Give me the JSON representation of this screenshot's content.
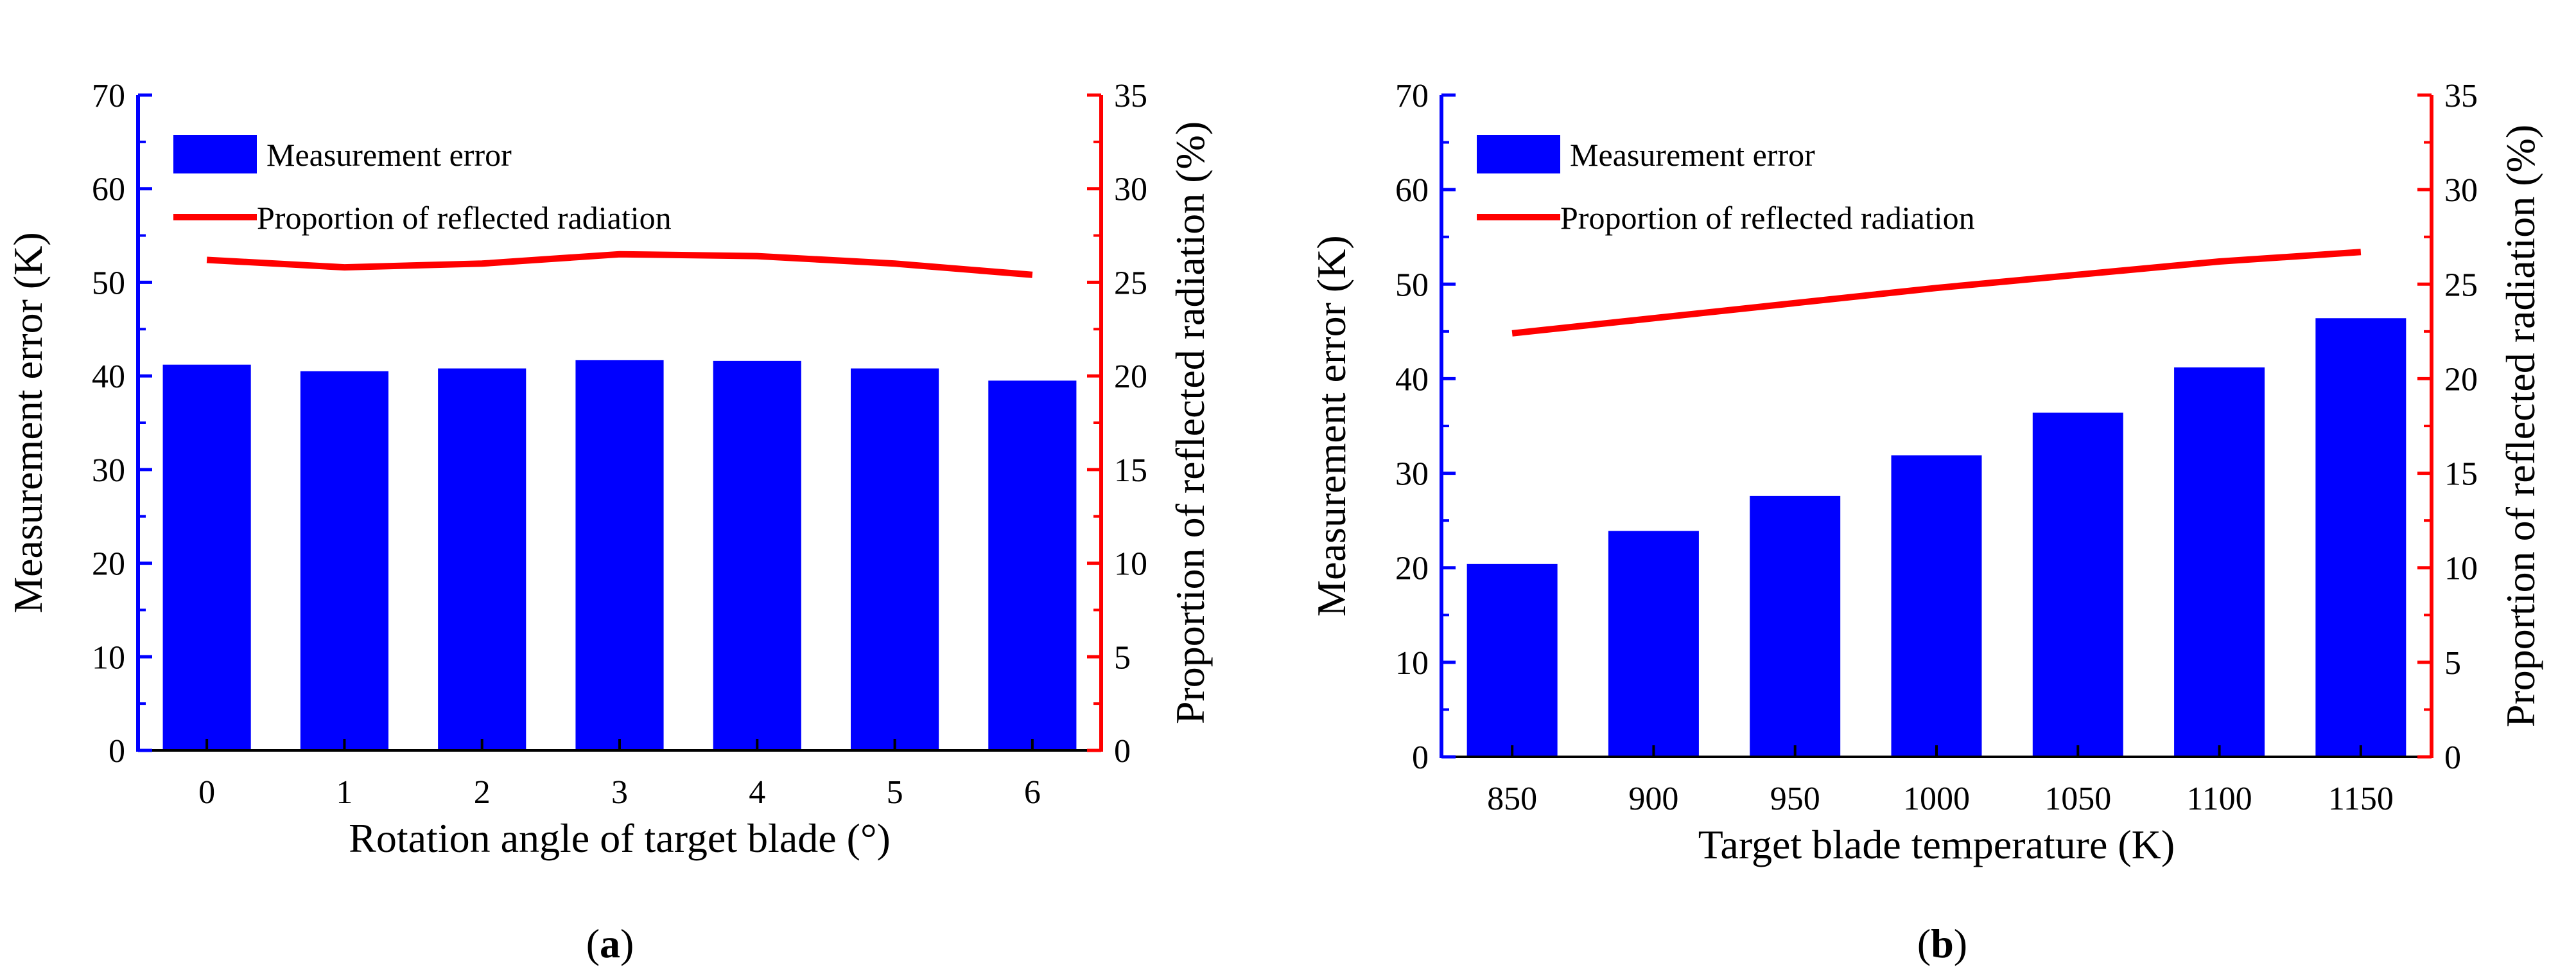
{
  "chart_data": [
    {
      "type": "bar+line",
      "panel_label": {
        "open": "(",
        "letter": "a",
        "close": ")"
      },
      "categories": [
        "0",
        "1",
        "2",
        "3",
        "4",
        "5",
        "6"
      ],
      "series": [
        {
          "name": "Measurement error",
          "kind": "bar",
          "axis": "left",
          "values": [
            41.2,
            40.5,
            40.8,
            41.7,
            41.6,
            40.8,
            39.5
          ]
        },
        {
          "name": "Proportion of reflected radiation",
          "kind": "line",
          "axis": "right",
          "values": [
            26.2,
            25.8,
            26.0,
            26.5,
            26.4,
            26.0,
            25.4
          ]
        }
      ],
      "xlabel": "Rotation angle of target blade (°)",
      "ylabel": "Measurement error (K)",
      "y2label": "Proportion of reflected radiation (%)",
      "ylim": [
        0,
        70
      ],
      "y2lim": [
        0,
        35
      ],
      "yticks": [
        0,
        10,
        20,
        30,
        40,
        50,
        60,
        70
      ],
      "y2ticks": [
        0,
        5,
        10,
        15,
        20,
        25,
        30,
        35
      ],
      "legend_position": "top-left",
      "colors": {
        "bar": "#0000ff",
        "line": "#ff0000",
        "left_axis": "#0000ff",
        "right_axis": "#ff0000",
        "bottom_axis": "#000000"
      }
    },
    {
      "type": "bar+line",
      "panel_label": {
        "open": "(",
        "letter": "b",
        "close": ")"
      },
      "categories": [
        "850",
        "900",
        "950",
        "1000",
        "1050",
        "1100",
        "1150"
      ],
      "series": [
        {
          "name": "Measurement error",
          "kind": "bar",
          "axis": "left",
          "values": [
            20.4,
            23.9,
            27.6,
            31.9,
            36.4,
            41.2,
            46.4
          ]
        },
        {
          "name": "Proportion of reflected radiation",
          "kind": "line",
          "axis": "right",
          "values": [
            22.4,
            23.2,
            24.0,
            24.8,
            25.5,
            26.2,
            26.7
          ]
        }
      ],
      "xlabel": "Target blade temperature (K)",
      "ylabel": "Measurement error (K)",
      "y2label": "Proportion of reflected radiation (%)",
      "ylim": [
        0,
        70
      ],
      "y2lim": [
        0,
        35
      ],
      "yticks": [
        0,
        10,
        20,
        30,
        40,
        50,
        60,
        70
      ],
      "y2ticks": [
        0,
        5,
        10,
        15,
        20,
        25,
        30,
        35
      ],
      "legend_position": "top-left",
      "colors": {
        "bar": "#0000ff",
        "line": "#ff0000",
        "left_axis": "#0000ff",
        "right_axis": "#ff0000",
        "bottom_axis": "#000000"
      }
    }
  ]
}
